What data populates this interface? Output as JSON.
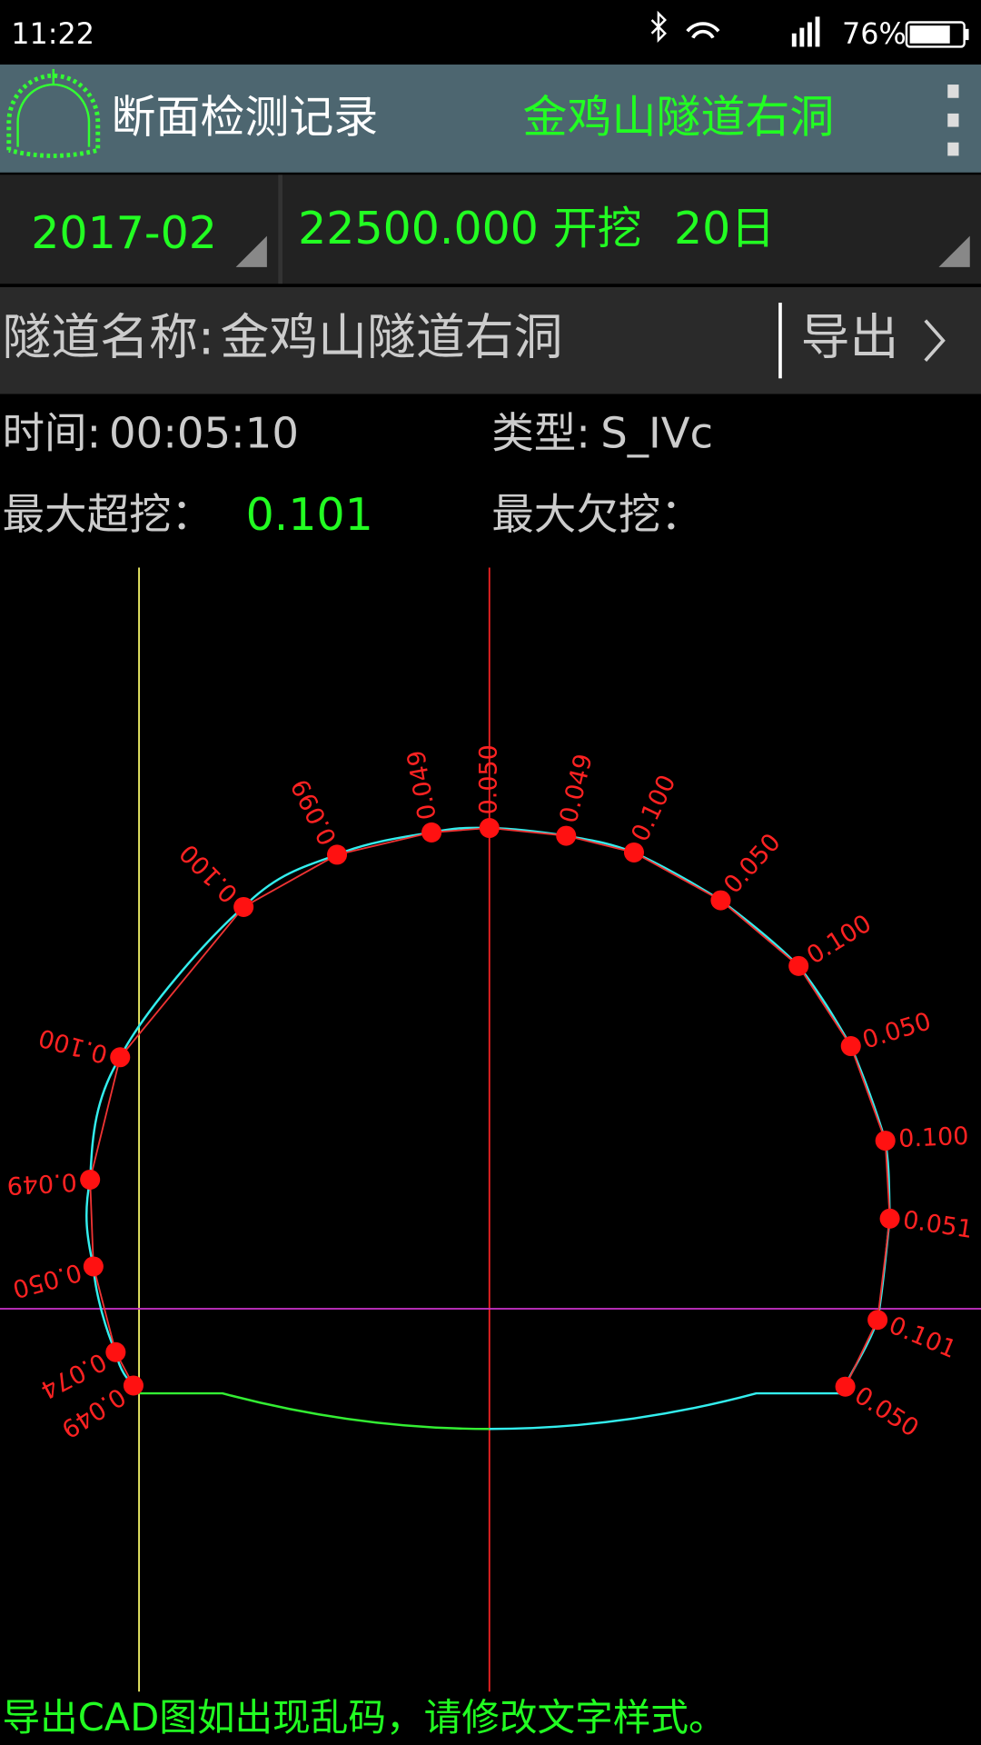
{
  "status_bar": {
    "time": "11:22",
    "battery": "76%"
  },
  "app_bar": {
    "title": "断面检测记录",
    "tunnel": "金鸡山隧道右洞"
  },
  "selectors": {
    "month": "2017-02",
    "station": "22500.000",
    "stage": "开挖",
    "day": "20日"
  },
  "tunnel_row": {
    "label": "隧道名称:",
    "name": "金鸡山隧道右洞",
    "export": "导出"
  },
  "info": {
    "time_label": "时间:",
    "time": "00:05:10",
    "type_label": "类型:",
    "type": "S_IVc",
    "max_over_label": "最大超挖：",
    "max_over": "0.101",
    "max_under_label": "最大欠挖："
  },
  "profile": {
    "points": [
      {
        "label": "0.049"
      },
      {
        "label": "0.074"
      },
      {
        "label": "0.050"
      },
      {
        "label": "0.049"
      },
      {
        "label": "0.100"
      },
      {
        "label": "0.100"
      },
      {
        "label": "0.099"
      },
      {
        "label": "0.049"
      },
      {
        "label": "0.050"
      },
      {
        "label": "0.049"
      },
      {
        "label": "0.100"
      },
      {
        "label": "0.050"
      },
      {
        "label": "0.100"
      },
      {
        "label": "0.050"
      },
      {
        "label": "0.100"
      },
      {
        "label": "0.051"
      },
      {
        "label": "0.101"
      },
      {
        "label": "0.050"
      }
    ]
  },
  "footer": "导出CAD图如出现乱码，请修改文字样式。"
}
